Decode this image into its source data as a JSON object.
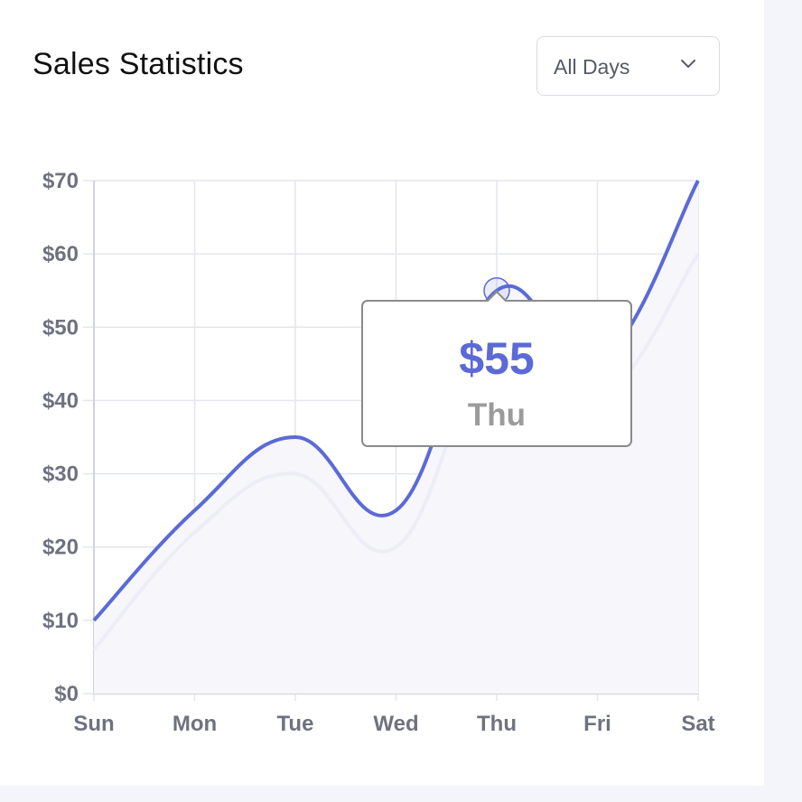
{
  "card": {
    "title": "Sales Statistics"
  },
  "filter": {
    "selected": "All Days"
  },
  "tooltip": {
    "value": "$55",
    "label": "Thu"
  },
  "colors": {
    "primary_line": "#5b6ad6",
    "secondary_line": "#ecedf6",
    "area_fill": "#f6f6fb",
    "grid": "#e4e6ee"
  },
  "chart_data": {
    "type": "line",
    "categories": [
      "Sun",
      "Mon",
      "Tue",
      "Wed",
      "Thu",
      "Fri",
      "Sat"
    ],
    "series": [
      {
        "values": [
          10,
          25,
          35,
          25,
          55,
          45,
          70
        ]
      },
      {
        "values": [
          6,
          22,
          30,
          20,
          48,
          40,
          60
        ]
      }
    ],
    "y_ticks": [
      "$0",
      "$10",
      "$20",
      "$30",
      "$40",
      "$50",
      "$60",
      "$70"
    ],
    "ylim": [
      0,
      70
    ],
    "grid": true,
    "highlighted": {
      "category": "Thu",
      "value": 55
    }
  }
}
